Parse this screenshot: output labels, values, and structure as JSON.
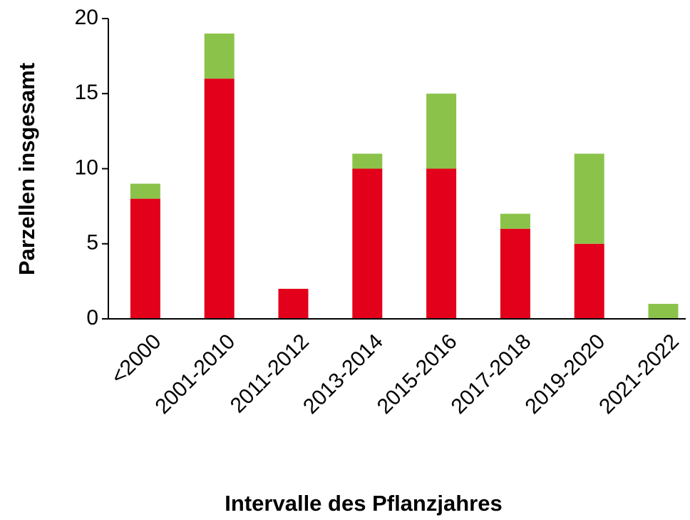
{
  "chart_data": {
    "type": "bar",
    "stacked": true,
    "xlabel": "Intervalle des Pflanzjahres",
    "ylabel": "Parzellen insgesamt",
    "categories": [
      "<2000",
      "2001-2010",
      "2011-2012",
      "2013-2014",
      "2015-2016",
      "2017-2018",
      "2019-2020",
      "2021-2022"
    ],
    "series": [
      {
        "color": "#e2001a",
        "values": [
          8,
          16,
          2,
          10,
          10,
          6,
          5,
          0
        ]
      },
      {
        "color": "#8bc34a",
        "values": [
          1,
          3,
          0,
          1,
          5,
          1,
          6,
          1
        ]
      }
    ],
    "ylim": [
      0,
      20
    ],
    "yticks": [
      0,
      5,
      10,
      15,
      20
    ],
    "grid": false
  }
}
